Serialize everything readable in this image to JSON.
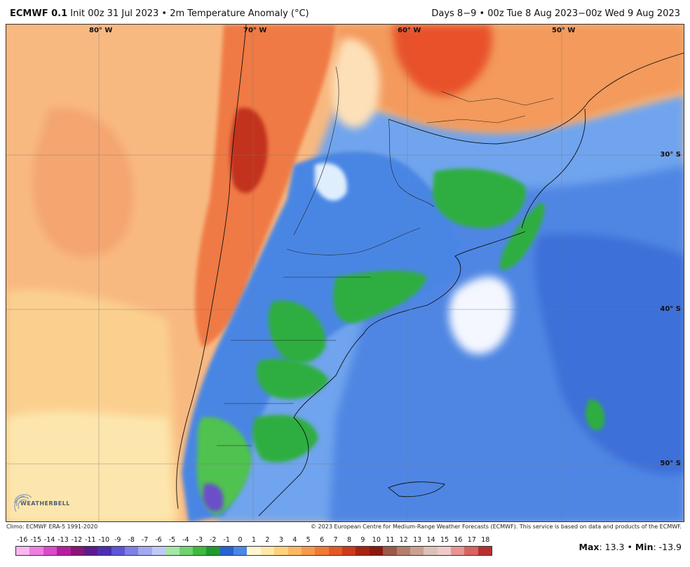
{
  "header": {
    "model": "ECMWF 0.1",
    "degree": "°",
    "run_info": " Init 00z 31 Jul 2023 • 2m Temperature Anomaly (°C)",
    "valid": "Days 8−9 • 00z Tue 8 Aug 2023−00z Wed 9 Aug 2023"
  },
  "map": {
    "longitude_labels": [
      "80° W",
      "70° W",
      "60° W",
      "50° W"
    ],
    "latitude_labels": [
      "30° S",
      "40° S",
      "50° S"
    ],
    "logo_text": "WEATHERBELL"
  },
  "credits": {
    "climo": "Climo: ECMWF ERA-5 1991-2020",
    "copyright": "© 2023 European Centre for Medium-Range Weather Forecasts (ECMWF). This service is based on data and products of the ECMWF."
  },
  "legend": {
    "ticks": [
      "-16",
      "-15",
      "-14",
      "-13",
      "-12",
      "-11",
      "-10",
      "-9",
      "-8",
      "-7",
      "-6",
      "-5",
      "-4",
      "-3",
      "-2",
      "-1",
      "0",
      "1",
      "2",
      "3",
      "4",
      "5",
      "6",
      "7",
      "8",
      "9",
      "10",
      "11",
      "12",
      "13",
      "14",
      "15",
      "16",
      "17",
      "18"
    ],
    "colors": [
      "#f7b7ef",
      "#ee7de0",
      "#d94bc9",
      "#b41f9e",
      "#8a1478",
      "#5d1a8f",
      "#4a2fb0",
      "#5f55d6",
      "#7f7fe6",
      "#a1a9f0",
      "#c0c8f6",
      "#a6e6a6",
      "#6fd36f",
      "#3fb93f",
      "#1f9a2f",
      "#2a62cf",
      "#4a88e6",
      "#fff7d2",
      "#fde9a8",
      "#fdd27e",
      "#fbb762",
      "#f59a4a",
      "#ee7a36",
      "#e25a27",
      "#cb3b1c",
      "#a82312",
      "#8a1a0e",
      "#9b5a48",
      "#b47e6e",
      "#c9a192",
      "#dcc1b6",
      "#f0c9c9",
      "#e79494",
      "#d76363",
      "#b73030"
    ],
    "max_label": "Max",
    "max_value": "13.3",
    "min_label": "Min",
    "min_value": "-13.9",
    "separator": "•"
  }
}
